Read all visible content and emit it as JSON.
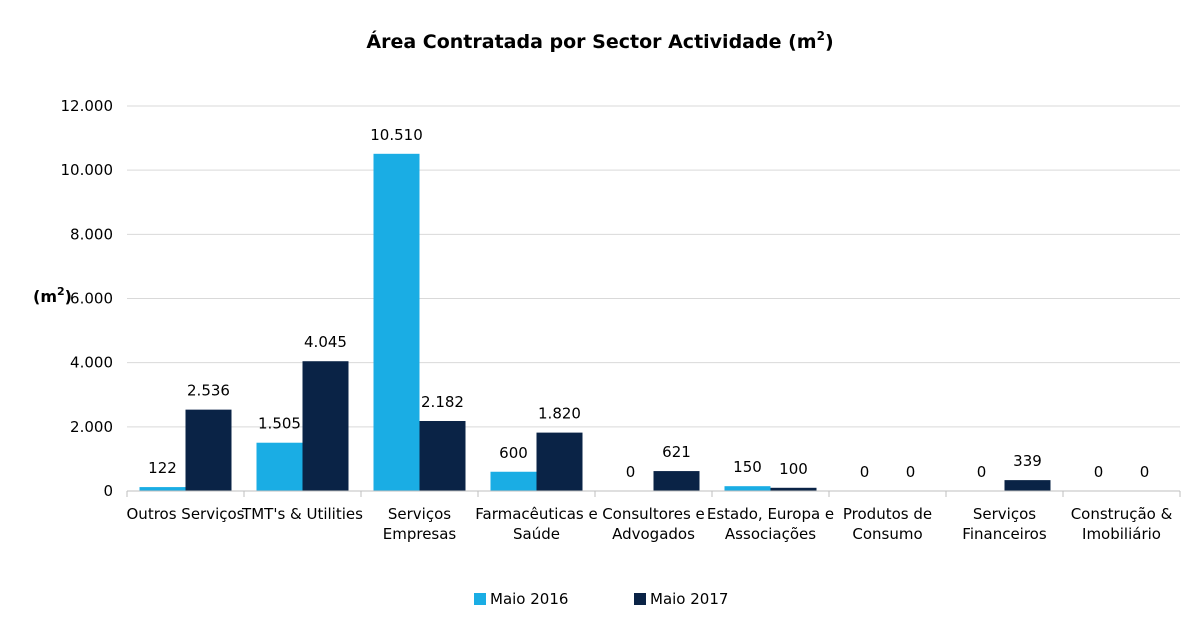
{
  "chart_data": {
    "type": "bar",
    "title": "Área Contratada por Sector Actividade (m",
    "title_sup": "2",
    "title_close": ")",
    "ylabel": "(m",
    "ylabel_sup": "2",
    "ylabel_close": ")",
    "xlabel": "",
    "ylim": [
      0,
      12000
    ],
    "yticks": [
      {
        "value": 0,
        "label": "0"
      },
      {
        "value": 2000,
        "label": "2.000"
      },
      {
        "value": 4000,
        "label": "4.000"
      },
      {
        "value": 6000,
        "label": "6.000"
      },
      {
        "value": 8000,
        "label": "8.000"
      },
      {
        "value": 10000,
        "label": "10.000"
      },
      {
        "value": 12000,
        "label": "12.000"
      }
    ],
    "grid": true,
    "legend_position": "bottom",
    "categories": [
      [
        "Outros Serviços"
      ],
      [
        "TMT's & Utilities"
      ],
      [
        "Serviços",
        "Empresas"
      ],
      [
        "Farmacêuticas e",
        "Saúde"
      ],
      [
        "Consultores e",
        "Advogados"
      ],
      [
        "Estado, Europa e",
        "Associações"
      ],
      [
        "Produtos de",
        "Consumo"
      ],
      [
        "Serviços",
        "Financeiros"
      ],
      [
        "Construção &",
        "Imobiliário"
      ]
    ],
    "series": [
      {
        "name": "Maio 2016",
        "color": "#1AADE4",
        "values": [
          122,
          1505,
          10510,
          600,
          0,
          150,
          0,
          0,
          0
        ],
        "labels": [
          "122",
          "1.505",
          "10.510",
          "600",
          "0",
          "150",
          "0",
          "0",
          "0"
        ]
      },
      {
        "name": "Maio 2017",
        "color": "#0A2346",
        "values": [
          2536,
          4045,
          2182,
          1820,
          621,
          100,
          0,
          339,
          0
        ],
        "labels": [
          "2.536",
          "4.045",
          "2.182",
          "1.820",
          "621",
          "100",
          "0",
          "339",
          "0"
        ]
      }
    ]
  }
}
